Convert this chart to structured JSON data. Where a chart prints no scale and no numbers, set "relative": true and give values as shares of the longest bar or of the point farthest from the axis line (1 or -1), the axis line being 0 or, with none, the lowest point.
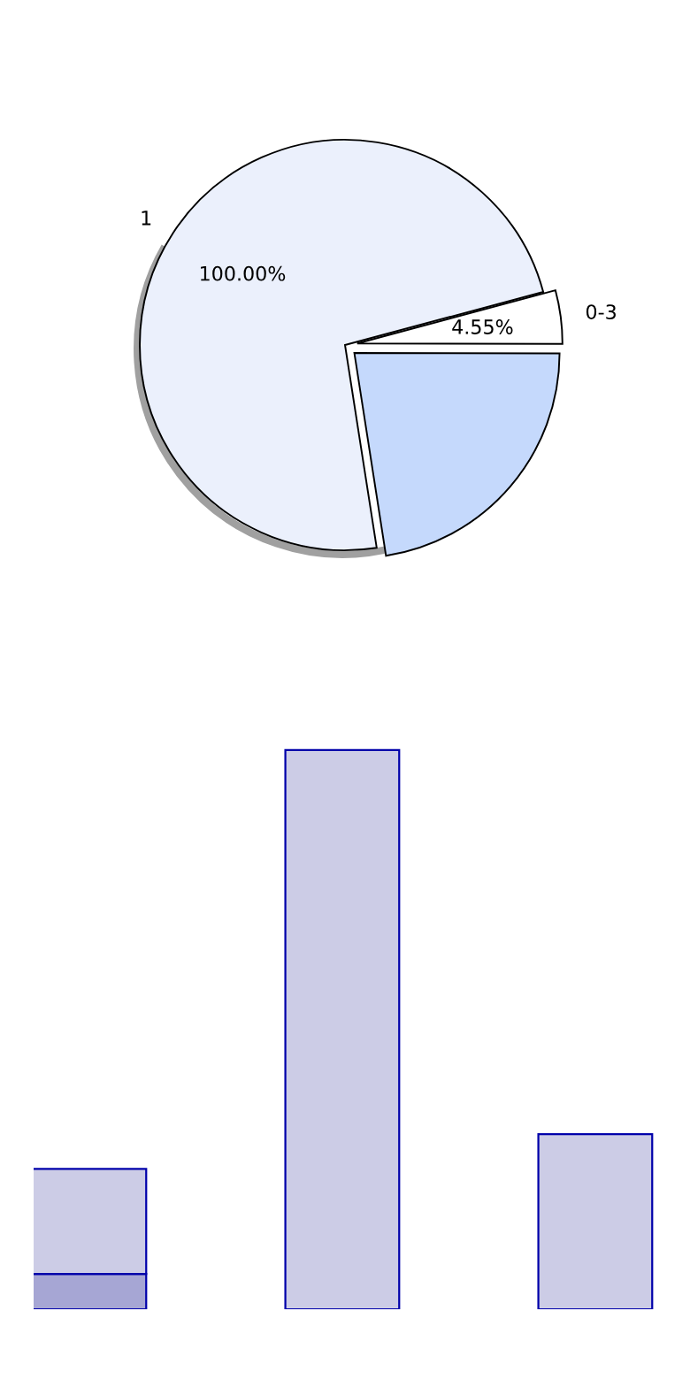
{
  "chart_data": [
    {
      "type": "pie",
      "categories": [
        "1",
        null,
        "0-3"
      ],
      "values": [
        73.3,
        22.5,
        4.2
      ],
      "colors": [
        "#ebf0fc",
        "#c5d9fc",
        "#ffffff"
      ],
      "annotations": [
        "100.00%",
        "4.55%"
      ]
    },
    {
      "type": "bar",
      "relative": true,
      "stacked": true,
      "categories": [
        null,
        null,
        null
      ],
      "series": [
        {
          "color": "#a6a6d4",
          "values": [
            0.063,
            null,
            null
          ]
        },
        {
          "color": "#cccce6",
          "values": [
            0.188,
            1,
            0.313
          ]
        }
      ]
    }
  ]
}
